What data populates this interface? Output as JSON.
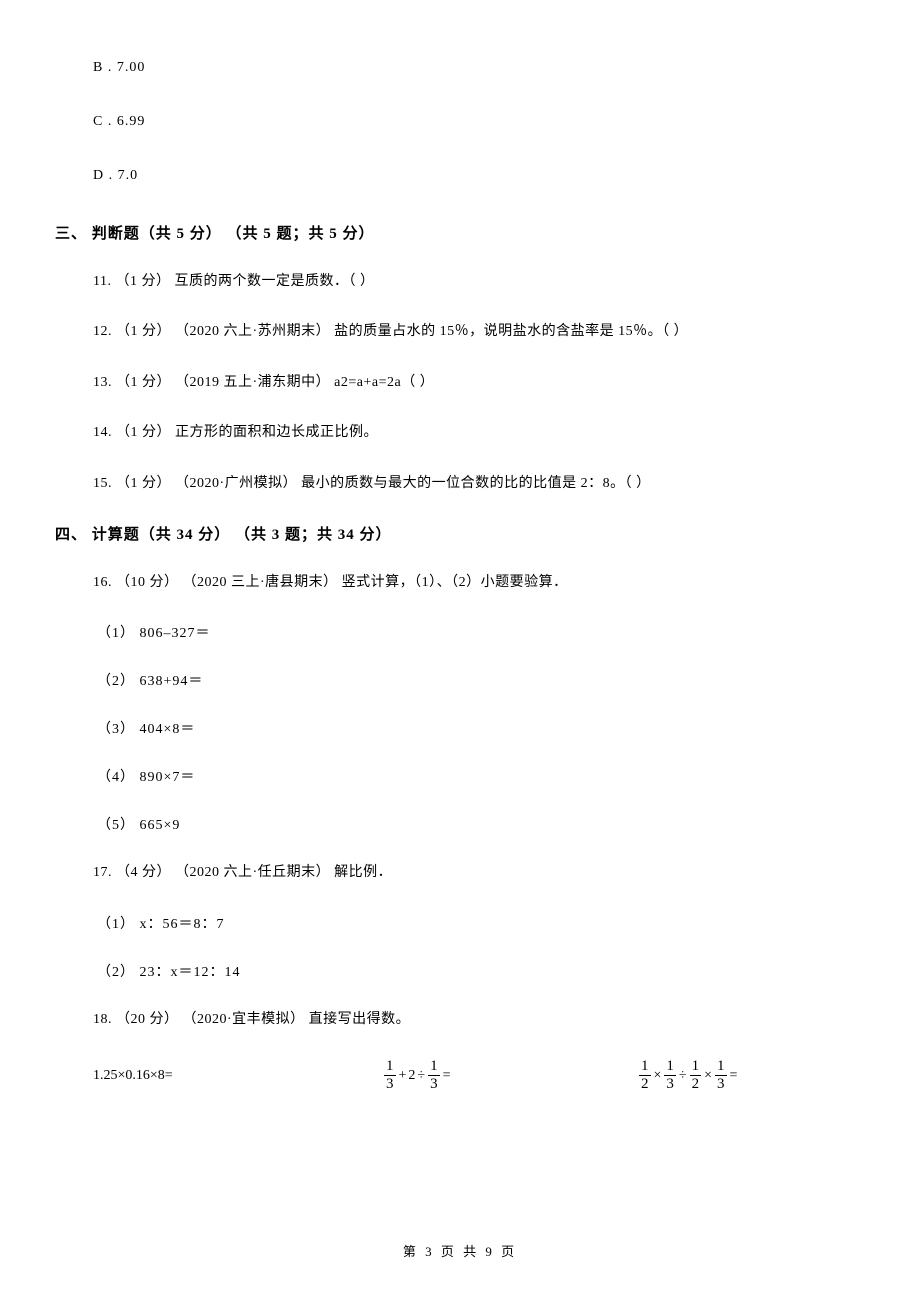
{
  "options": {
    "b": "B .  7.00",
    "c": "C .  6.99",
    "d": "D .  7.0"
  },
  "section3": {
    "heading": "三、 判断题（共 5 分） （共 5 题；共 5 分）",
    "q11": "11. （1 分） 互质的两个数一定是质数．（     ）",
    "q12": "12. （1 分） （2020 六上·苏州期末） 盐的质量占水的 15％，说明盐水的含盐率是 15％。（     ）",
    "q13": "13. （1 分） （2019 五上·浦东期中） a2=a+a=2a（     ）",
    "q14": "14. （1 分） 正方形的面积和边长成正比例。",
    "q15": "15. （1 分） （2020·广州模拟） 最小的质数与最大的一位合数的比的比值是 2：8。（     ）"
  },
  "section4": {
    "heading": "四、 计算题（共 34 分） （共 3 题；共 34 分）",
    "q16": "16. （10 分） （2020 三上·唐县期末） 竖式计算，（1）、（2）小题要验算．",
    "q16_1": "（1） 806–327＝",
    "q16_2": "（2） 638+94＝",
    "q16_3": "（3） 404×8＝",
    "q16_4": "（4） 890×7＝",
    "q16_5": "（5） 665×9",
    "q17": "17. （4 分） （2020 六上·任丘期末） 解比例．",
    "q17_1": "（1） x：56＝8：7",
    "q17_2": "（2） 23：x＝12：14",
    "q18": "18. （20 分） （2020·宜丰模拟） 直接写出得数。",
    "calc1": "1.25×0.16×8="
  },
  "fractions": {
    "one": "1",
    "three": "3",
    "two": "2",
    "plus": "+",
    "minus": "−",
    "times": "×",
    "div": "÷",
    "eq": "=",
    "num2": "2"
  },
  "footer": "第 3 页 共 9 页"
}
